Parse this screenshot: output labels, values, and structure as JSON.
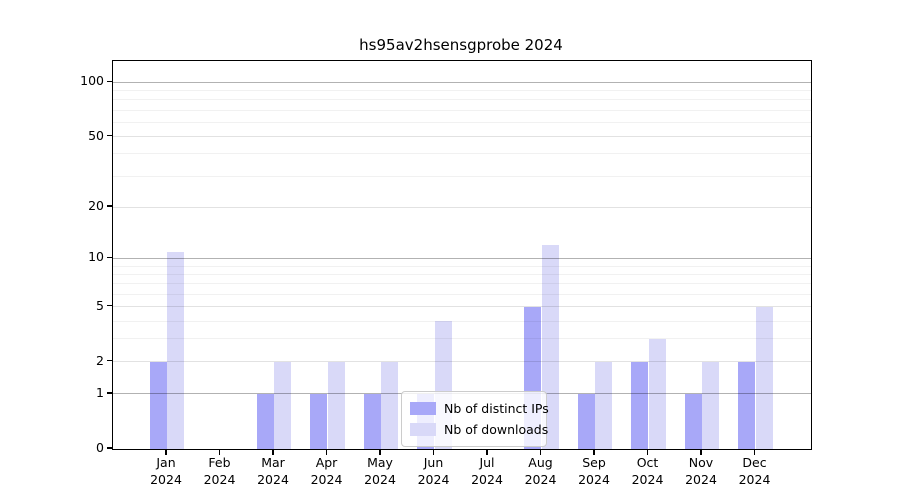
{
  "chart_data": {
    "type": "bar",
    "title": "hs95av2hsensgprobe 2024",
    "categories": [
      "Jan 2024",
      "Feb 2024",
      "Mar 2024",
      "Apr 2024",
      "May 2024",
      "Jun 2024",
      "Jul 2024",
      "Aug 2024",
      "Sep 2024",
      "Oct 2024",
      "Nov 2024",
      "Dec 2024"
    ],
    "series": [
      {
        "name": "Nb of distinct IPs",
        "color": "#a8a8f8",
        "values": [
          2,
          0,
          1,
          1,
          1,
          1,
          0,
          5,
          1,
          2,
          1,
          2
        ]
      },
      {
        "name": "Nb of downloads",
        "color": "#d9d9f8",
        "values": [
          11,
          0,
          2,
          2,
          2,
          4,
          0,
          12,
          2,
          3,
          2,
          5
        ]
      }
    ],
    "yscale": "log1p",
    "ylim": [
      0,
      114
    ],
    "yticks": [
      100,
      50,
      20,
      10,
      5,
      2,
      1,
      0
    ],
    "grid_major_values": [
      1,
      10,
      100
    ],
    "grid_mid_values": [
      2,
      5,
      20,
      50
    ],
    "grid_minor_values": [
      3,
      4,
      6,
      7,
      8,
      9,
      30,
      40,
      60,
      70,
      80,
      90
    ],
    "xlabel": "",
    "ylabel": "",
    "legend_position": "lower center",
    "legend_items": [
      "Nb of distinct IPs",
      "Nb of downloads"
    ]
  },
  "colors": {
    "background": "#ffffff",
    "axis": "#000000",
    "bar_dark": "#a8a8f8",
    "bar_light": "#d9d9f8"
  }
}
